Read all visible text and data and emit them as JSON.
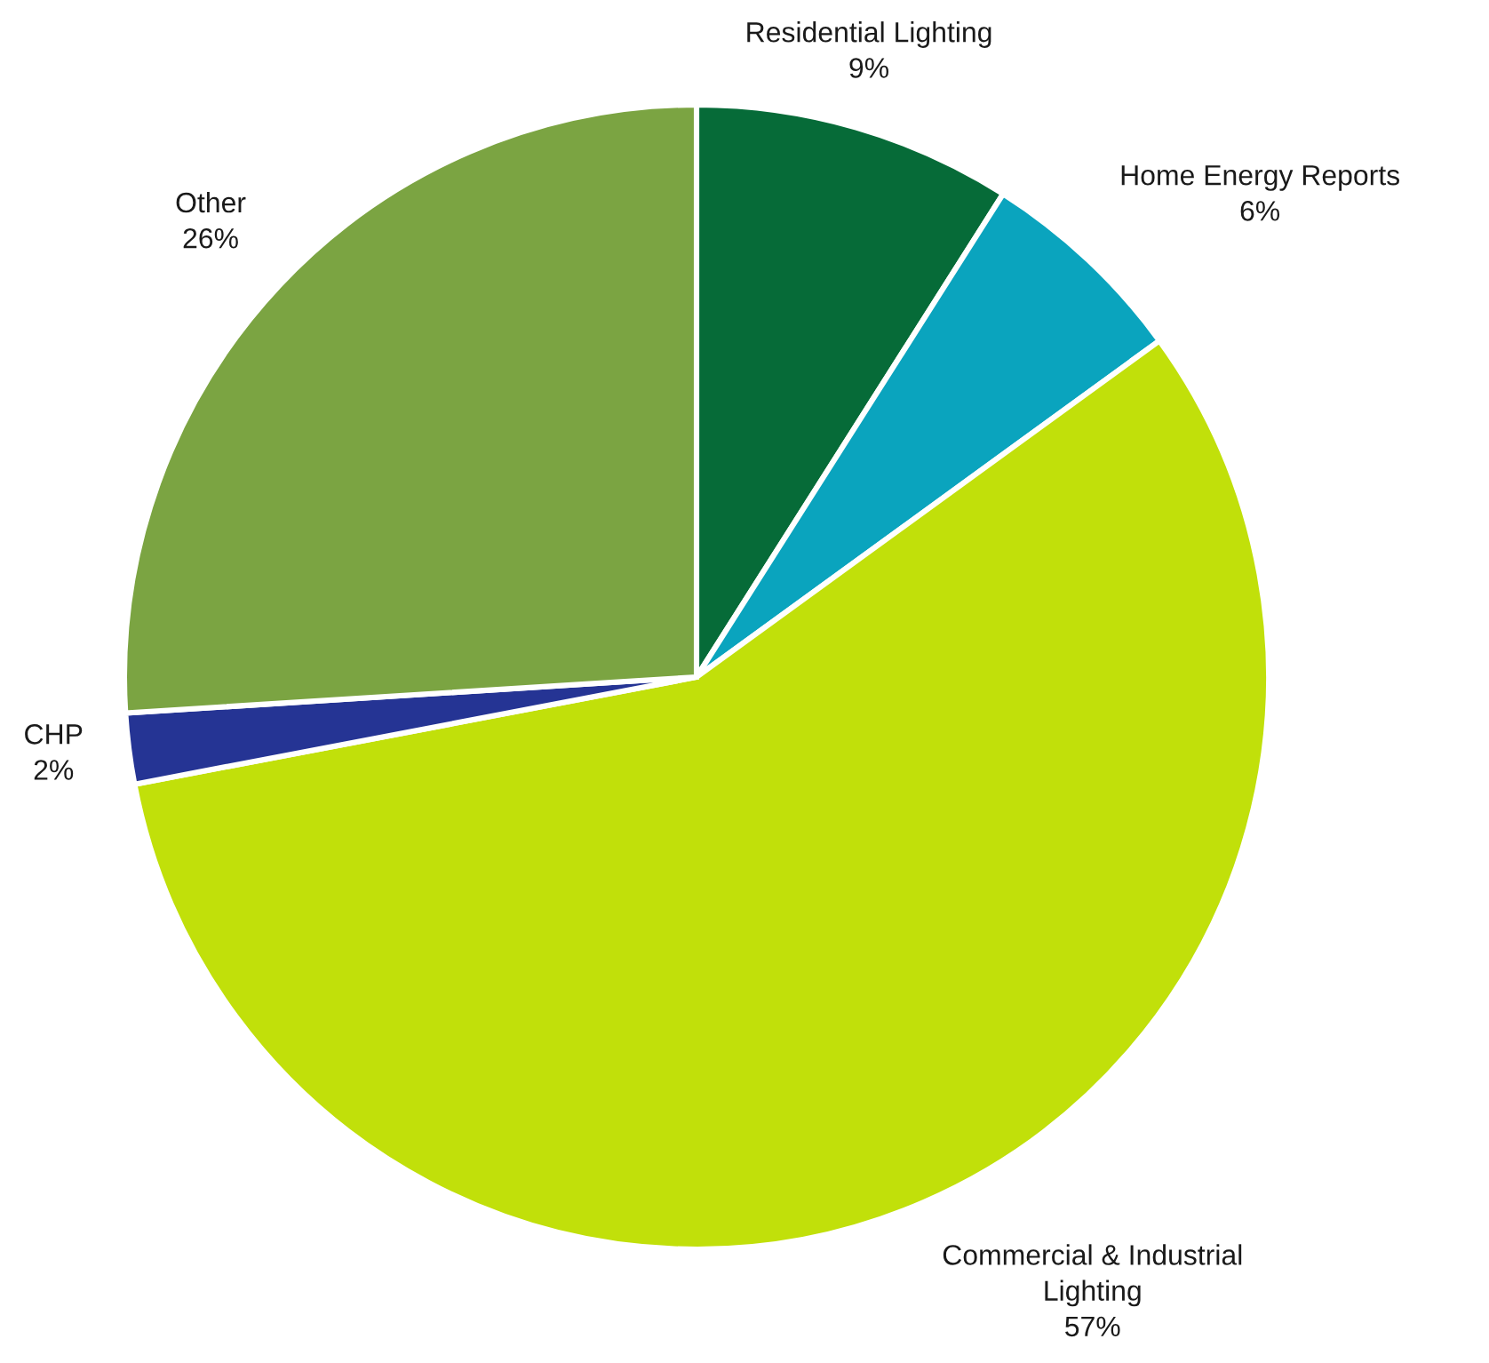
{
  "chart_data": {
    "type": "pie",
    "categories": [
      "Residential Lighting",
      "Home Energy Reports",
      "Commercial & Industrial\nLighting",
      "CHP",
      "Other"
    ],
    "values": [
      9,
      6,
      57,
      2,
      26
    ],
    "value_labels": [
      "9%",
      "6%",
      "57%",
      "2%",
      "26%"
    ],
    "colors": [
      "#066b38",
      "#0aa4be",
      "#c1e00a",
      "#253494",
      "#7ba442"
    ]
  }
}
